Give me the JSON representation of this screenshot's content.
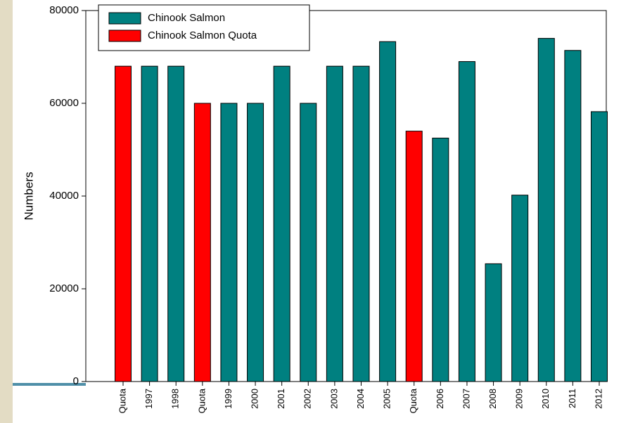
{
  "chart_data": {
    "type": "bar",
    "y_label": "Numbers",
    "categories": [
      "Quota",
      "1997",
      "1998",
      "Quota",
      "1999",
      "2000",
      "2001",
      "2002",
      "2003",
      "2004",
      "2005",
      "Quota",
      "2006",
      "2007",
      "2008",
      "2009",
      "2010",
      "2011",
      "2012"
    ],
    "series": [
      {
        "name": "Chinook Salmon",
        "color": "#008080",
        "values": [
          null,
          68000,
          68000,
          null,
          60000,
          60000,
          68000,
          60000,
          68000,
          68000,
          73300,
          null,
          52500,
          69000,
          25400,
          40200,
          74000,
          71400,
          58200
        ]
      },
      {
        "name": "Chinook Salmon Quota",
        "color": "#ff0000",
        "values": [
          68000,
          null,
          null,
          60000,
          null,
          null,
          null,
          null,
          null,
          null,
          null,
          54000,
          null,
          null,
          null,
          null,
          null,
          null,
          null
        ]
      }
    ],
    "ylim": [
      0,
      80000
    ],
    "yticks": [
      0,
      20000,
      40000,
      60000,
      80000
    ],
    "legend": "upper left"
  }
}
